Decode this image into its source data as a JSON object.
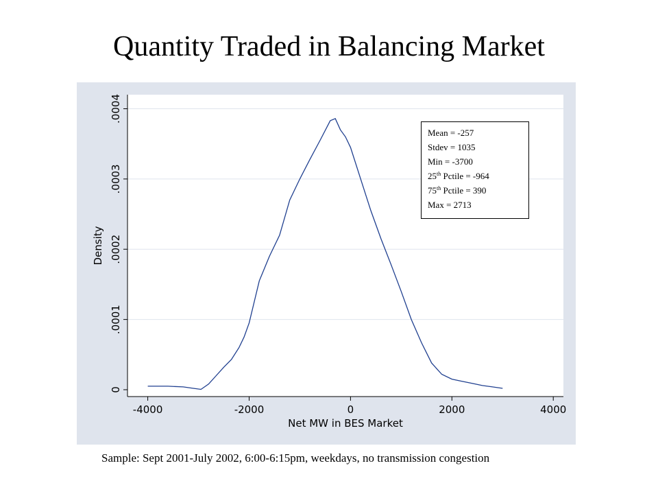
{
  "slide": {
    "title": "Quantity Traded in Balancing Market",
    "footnote": "Sample:  Sept 2001-July 2002, 6:00-6:15pm, weekdays, no transmission congestion"
  },
  "stats_box": {
    "mean": "Mean = -257",
    "stdev": "Stdev = 1035",
    "min": "Min = -3700",
    "p25_prefix": "25",
    "p25_sup": "th",
    "p25_rest": " Pctile  = -964",
    "p75_prefix": "75",
    "p75_sup": "th",
    "p75_rest": " Pctile = 390",
    "max": "Max = 2713"
  },
  "colors": {
    "panel_background": "#dfe4ed",
    "plot_background": "#ffffff",
    "curve": "#1f3f8f",
    "gridline": "#dfe4ed"
  },
  "chart_data": {
    "type": "line",
    "title": "",
    "xlabel": "Net MW in BES Market",
    "ylabel": "Density",
    "xlim": [
      -4000,
      4000
    ],
    "ylim": [
      0,
      0.0004
    ],
    "x_ticks": [
      -4000,
      -2000,
      0,
      2000,
      4000
    ],
    "x_tick_labels": [
      "-4000",
      "-2000",
      "0",
      "2000",
      "4000"
    ],
    "y_ticks": [
      0,
      0.0001,
      0.0002,
      0.0003,
      0.0004
    ],
    "y_tick_labels": [
      "0",
      ".0001",
      ".0002",
      ".0003",
      ".0004"
    ],
    "grid": true,
    "legend": "none",
    "series": [
      {
        "x": [
          -4000,
          -3600,
          -3300,
          -3100,
          -2950,
          -2800,
          -2650,
          -2500,
          -2350,
          -2200,
          -2100,
          -2000,
          -1900,
          -1800,
          -1600,
          -1400,
          -1200,
          -1000,
          -800,
          -600,
          -400,
          -300,
          -200,
          -100,
          0,
          200,
          400,
          600,
          800,
          1000,
          1200,
          1400,
          1600,
          1800,
          2000,
          2200,
          2400,
          2600,
          2800,
          3000
        ],
        "y": [
          5e-06,
          5e-06,
          4e-06,
          2e-06,
          5e-07,
          8e-06,
          2e-05,
          3.2e-05,
          4.3e-05,
          6e-05,
          7.5e-05,
          9.5e-05,
          0.000125,
          0.000155,
          0.00019,
          0.00022,
          0.00027,
          0.0003,
          0.000328,
          0.000355,
          0.000383,
          0.000386,
          0.00037,
          0.00036,
          0.000345,
          0.0003,
          0.000255,
          0.000215,
          0.000178,
          0.00014,
          0.0001,
          6.7e-05,
          3.8e-05,
          2.2e-05,
          1.5e-05,
          1.2e-05,
          9e-06,
          6e-06,
          4e-06,
          2e-06
        ]
      }
    ]
  }
}
